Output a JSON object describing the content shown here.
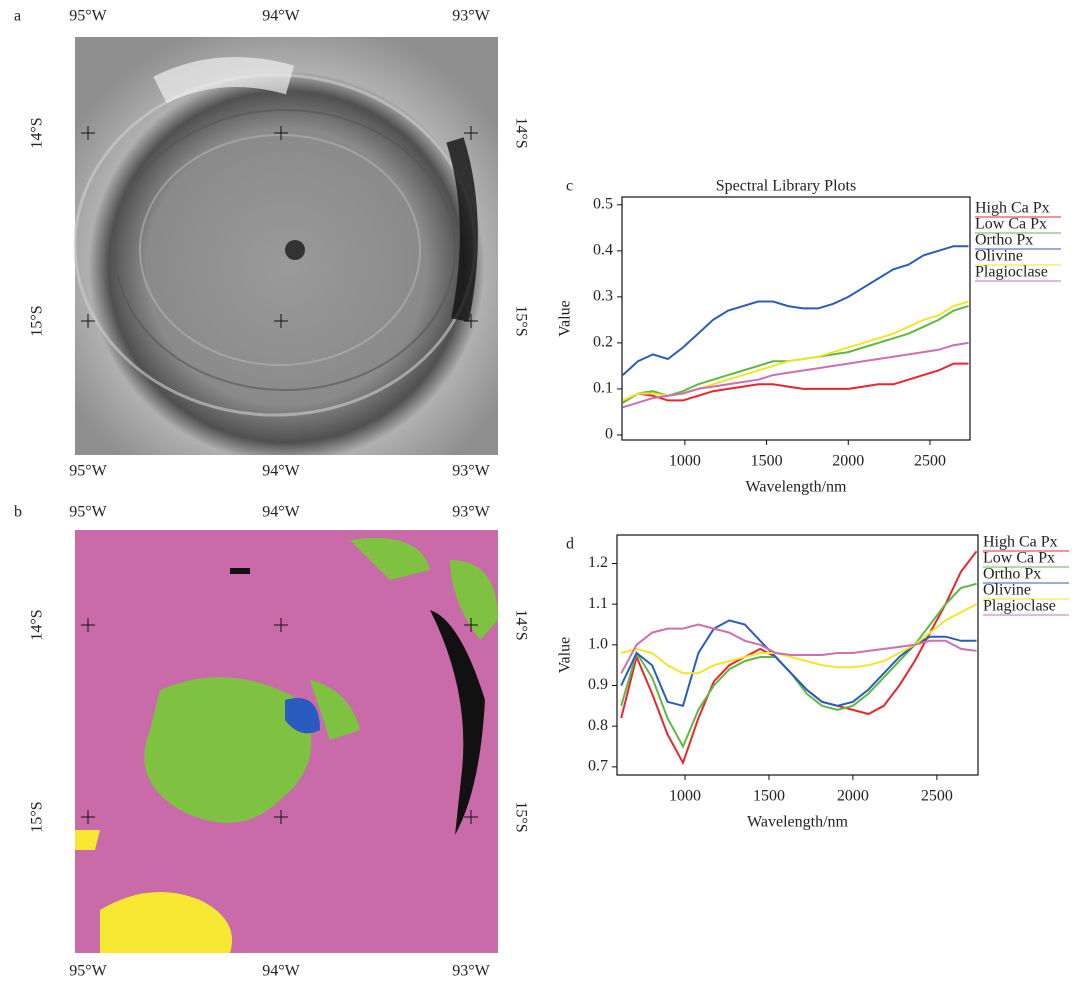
{
  "maps": [
    {
      "panel_label": "a",
      "lon_labels": [
        "95°W",
        "94°W",
        "93°W"
      ],
      "lat_labels": [
        "14°S",
        "15°S"
      ]
    },
    {
      "panel_label": "b",
      "lon_labels": [
        "95°W",
        "94°W",
        "93°W"
      ],
      "lat_labels": [
        "14°S",
        "15°S"
      ]
    }
  ],
  "chart_data": [
    {
      "type": "line",
      "panel_label": "c",
      "title": "Spectral Library Plots",
      "x_label": "Wavelength/nm",
      "y_label": "Value",
      "x": [
        620,
        712,
        804,
        896,
        988,
        1080,
        1172,
        1264,
        1356,
        1448,
        1540,
        1632,
        1724,
        1816,
        1908,
        2000,
        2092,
        2184,
        2276,
        2368,
        2460,
        2552,
        2644,
        2736
      ],
      "xlim": [
        615,
        2745
      ],
      "xticks": [
        1000,
        1500,
        2000,
        2500
      ],
      "ylim": [
        -0.011,
        0.517
      ],
      "yticks": [
        0,
        0.1,
        0.2,
        0.3,
        0.4,
        0.5
      ],
      "series": [
        {
          "name": "High Ca Px",
          "color": "#e8262c",
          "values": [
            0.07,
            0.09,
            0.085,
            0.075,
            0.075,
            0.085,
            0.095,
            0.1,
            0.105,
            0.11,
            0.11,
            0.105,
            0.1,
            0.1,
            0.1,
            0.1,
            0.105,
            0.11,
            0.11,
            0.12,
            0.13,
            0.14,
            0.155,
            0.155
          ]
        },
        {
          "name": "Low Ca Px",
          "color": "#5fb843",
          "values": [
            0.07,
            0.09,
            0.095,
            0.085,
            0.095,
            0.11,
            0.12,
            0.13,
            0.14,
            0.15,
            0.16,
            0.16,
            0.165,
            0.17,
            0.175,
            0.18,
            0.19,
            0.2,
            0.21,
            0.22,
            0.235,
            0.25,
            0.27,
            0.28
          ]
        },
        {
          "name": "Ortho Px",
          "color": "#2a5cbf",
          "values": [
            0.13,
            0.16,
            0.175,
            0.165,
            0.19,
            0.22,
            0.25,
            0.27,
            0.28,
            0.29,
            0.29,
            0.28,
            0.275,
            0.275,
            0.285,
            0.3,
            0.32,
            0.34,
            0.36,
            0.37,
            0.39,
            0.4,
            0.41,
            0.41
          ]
        },
        {
          "name": "Olivine",
          "color": "#f2e62a",
          "values": [
            0.075,
            0.09,
            0.09,
            0.085,
            0.09,
            0.1,
            0.11,
            0.12,
            0.13,
            0.14,
            0.15,
            0.16,
            0.165,
            0.17,
            0.18,
            0.19,
            0.2,
            0.21,
            0.22,
            0.235,
            0.25,
            0.26,
            0.28,
            0.29
          ]
        },
        {
          "name": "Plagioclase",
          "color": "#cc6fb3",
          "values": [
            0.06,
            0.07,
            0.08,
            0.085,
            0.09,
            0.1,
            0.105,
            0.11,
            0.115,
            0.12,
            0.13,
            0.135,
            0.14,
            0.145,
            0.15,
            0.155,
            0.16,
            0.165,
            0.17,
            0.175,
            0.18,
            0.185,
            0.195,
            0.2
          ]
        }
      ]
    },
    {
      "type": "line",
      "panel_label": "d",
      "x_label": "Wavelength/nm",
      "y_label": "Value",
      "x": [
        620,
        712,
        804,
        896,
        988,
        1080,
        1172,
        1264,
        1356,
        1448,
        1540,
        1632,
        1724,
        1816,
        1908,
        2000,
        2092,
        2184,
        2276,
        2368,
        2460,
        2552,
        2644,
        2736
      ],
      "xlim": [
        595,
        2745
      ],
      "xticks": [
        1000,
        1500,
        2000,
        2500
      ],
      "ylim": [
        0.68,
        1.27
      ],
      "yticks": [
        {
          "value": 0.7,
          "label": "0.7"
        },
        {
          "value": 0.8,
          "label": "0.8"
        },
        {
          "value": 0.9,
          "label": "0.9"
        },
        {
          "value": 1,
          "label": "1.0"
        },
        {
          "value": 1.1,
          "label": "1.1"
        },
        {
          "value": 1.2,
          "label": "1.2"
        }
      ],
      "series": [
        {
          "name": "High Ca Px",
          "color": "#e8262c",
          "values": [
            0.82,
            0.97,
            0.88,
            0.78,
            0.71,
            0.82,
            0.91,
            0.95,
            0.97,
            0.99,
            0.97,
            0.93,
            0.89,
            0.86,
            0.85,
            0.84,
            0.83,
            0.85,
            0.9,
            0.96,
            1.03,
            1.1,
            1.18,
            1.23
          ]
        },
        {
          "name": "Low Ca Px",
          "color": "#5fb843",
          "values": [
            0.85,
            0.98,
            0.92,
            0.82,
            0.75,
            0.84,
            0.9,
            0.94,
            0.96,
            0.97,
            0.97,
            0.93,
            0.88,
            0.85,
            0.84,
            0.85,
            0.88,
            0.92,
            0.96,
            1.0,
            1.05,
            1.1,
            1.14,
            1.15
          ]
        },
        {
          "name": "Ortho Px",
          "color": "#2a5cbf",
          "values": [
            0.9,
            0.98,
            0.95,
            0.86,
            0.85,
            0.98,
            1.04,
            1.06,
            1.05,
            1.01,
            0.97,
            0.93,
            0.89,
            0.86,
            0.85,
            0.86,
            0.89,
            0.93,
            0.97,
            1.0,
            1.02,
            1.02,
            1.01,
            1.01
          ]
        },
        {
          "name": "Olivine",
          "color": "#f2e62a",
          "values": [
            0.98,
            0.99,
            0.98,
            0.95,
            0.93,
            0.93,
            0.95,
            0.96,
            0.97,
            0.98,
            0.98,
            0.97,
            0.96,
            0.95,
            0.945,
            0.945,
            0.95,
            0.96,
            0.98,
            1.0,
            1.03,
            1.06,
            1.08,
            1.1
          ]
        },
        {
          "name": "Plagioclase",
          "color": "#cc6fb3",
          "values": [
            0.93,
            1.0,
            1.03,
            1.04,
            1.04,
            1.05,
            1.04,
            1.03,
            1.01,
            1.0,
            0.98,
            0.975,
            0.975,
            0.975,
            0.98,
            0.98,
            0.985,
            0.99,
            0.995,
            1.0,
            1.01,
            1.01,
            0.99,
            0.985
          ]
        }
      ]
    }
  ]
}
